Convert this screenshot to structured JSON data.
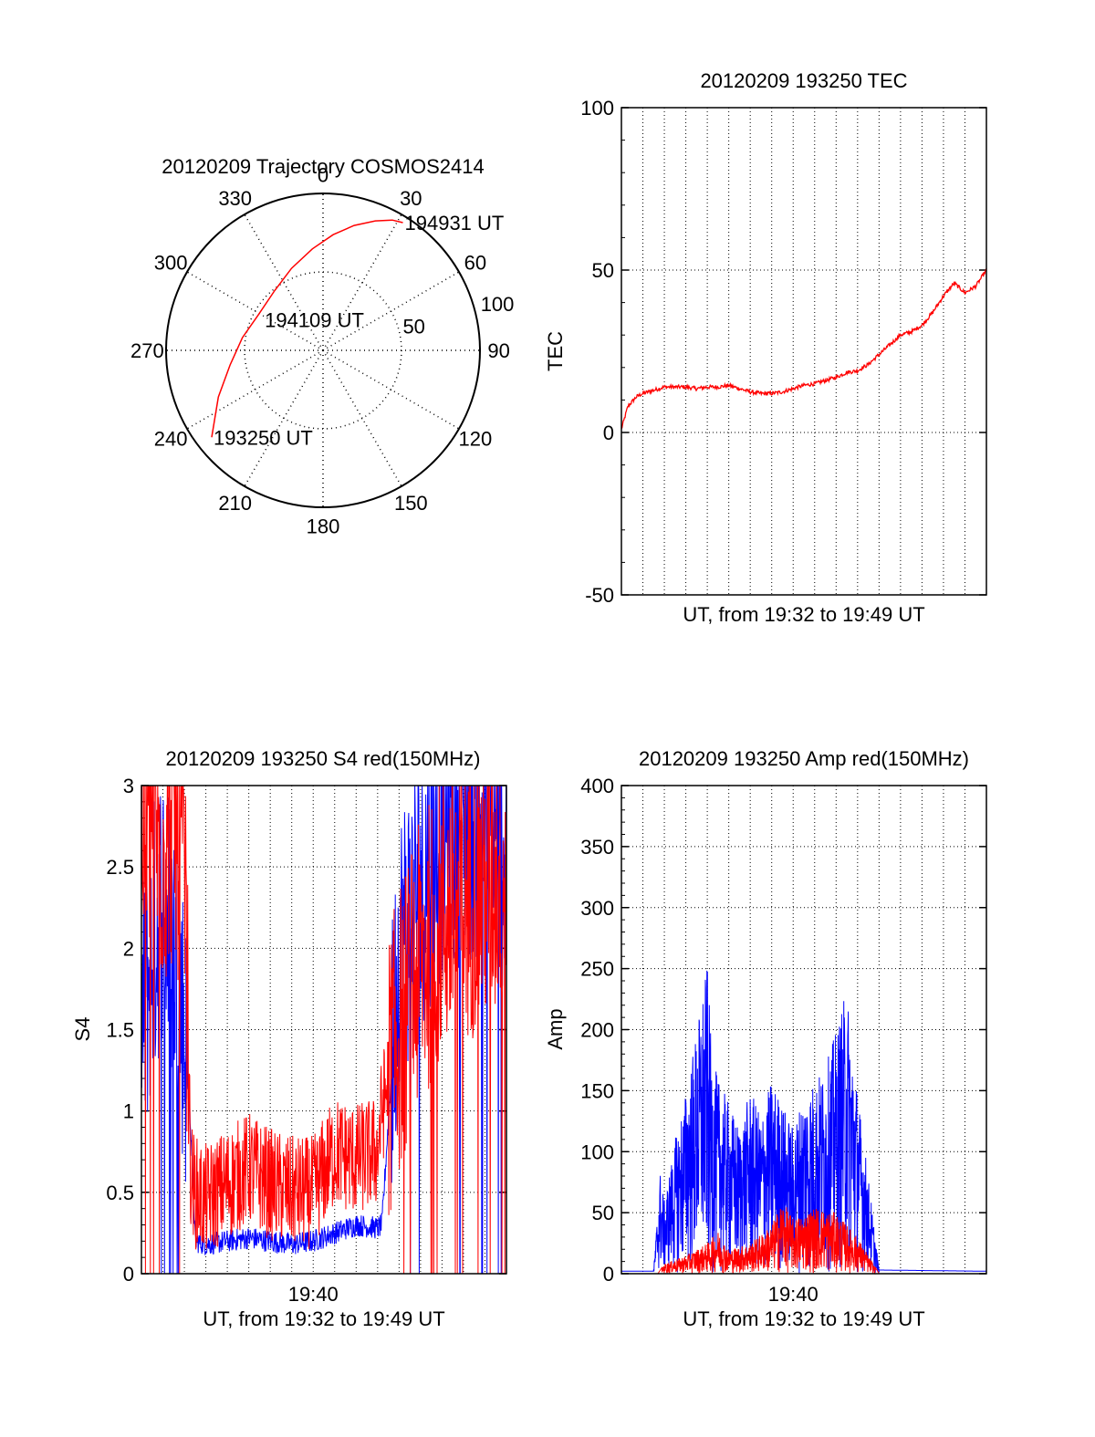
{
  "colors": {
    "red": "#ff0000",
    "blue": "#0000ff",
    "axis": "#000000"
  },
  "chart_data": [
    {
      "type": "polar",
      "title": "20120209 Trajectory COSMOS2414",
      "angle_labels": [
        "0",
        "30",
        "60",
        "90",
        "120",
        "150",
        "180",
        "210",
        "240",
        "270",
        "300",
        "330"
      ],
      "radial_labels": [
        "50",
        "100"
      ],
      "radial_label_values": [
        50,
        100
      ],
      "r_max": 100,
      "series": [
        {
          "color": "red",
          "points": [
            {
              "az": 232,
              "r": 90
            },
            {
              "az": 246,
              "r": 73
            },
            {
              "az": 261,
              "r": 60
            },
            {
              "az": 279,
              "r": 52
            },
            {
              "az": 299,
              "r": 47
            },
            {
              "az": 321,
              "r": 49
            },
            {
              "az": 339,
              "r": 56
            },
            {
              "az": 354,
              "r": 65
            },
            {
              "az": 5,
              "r": 74
            },
            {
              "az": 14,
              "r": 82
            },
            {
              "az": 22,
              "r": 89
            },
            {
              "az": 28,
              "r": 94
            },
            {
              "az": 32,
              "r": 96
            }
          ]
        }
      ],
      "annotations": [
        {
          "text": "194931 UT",
          "az": 32,
          "r": 96
        },
        {
          "text": "194109 UT",
          "az": 297,
          "r": 43
        },
        {
          "text": "193250 UT",
          "az": 232,
          "r": 90
        }
      ]
    },
    {
      "type": "line",
      "title": "20120209 193250 TEC",
      "ylabel": "TEC",
      "xlabel": "UT, from 19:32 to 19:49 UT",
      "ylim": [
        -50,
        100
      ],
      "yticks": [
        "-50",
        "0",
        "50",
        "100"
      ],
      "ytick_values": [
        -50,
        0,
        50,
        100
      ],
      "xlim": [
        0,
        17
      ],
      "grid": true,
      "series": [
        {
          "color": "red",
          "x": [
            0,
            0.3,
            0.7,
            1.0,
            1.5,
            2.0,
            2.5,
            3.0,
            3.5,
            4.0,
            4.5,
            5.0,
            5.5,
            6.0,
            6.5,
            7.0,
            7.5,
            8.0,
            8.5,
            9.0,
            9.5,
            10.0,
            10.5,
            11.0,
            11.5,
            12.0,
            12.5,
            13.0,
            13.5,
            14.0,
            14.5,
            15.0,
            15.5,
            16.0,
            16.5,
            17.0
          ],
          "y": [
            1,
            8,
            11,
            12,
            13,
            14,
            14,
            14,
            13.5,
            14,
            14,
            14.5,
            13.5,
            12.5,
            12,
            12,
            12.5,
            13.5,
            14.5,
            15,
            16,
            17,
            18.5,
            19,
            21,
            24,
            27,
            30,
            31,
            33,
            37,
            42,
            46,
            43,
            45,
            50
          ]
        }
      ]
    },
    {
      "type": "line",
      "title": "20120209 193250 S4 red(150MHz)",
      "ylabel": "S4",
      "xlabel": "UT, from 19:32 to 19:49 UT",
      "ylim": [
        0,
        3
      ],
      "yticks": [
        "0",
        "0.5",
        "1",
        "1.5",
        "2",
        "2.5",
        "3"
      ],
      "ytick_values": [
        0,
        0.5,
        1,
        1.5,
        2,
        2.5,
        3
      ],
      "xticks": [
        "19:40"
      ],
      "xtick_values": [
        8
      ],
      "xlim": [
        0,
        17
      ],
      "grid": true,
      "series": [
        {
          "color": "blue",
          "x": [
            0,
            0.5,
            1,
            1.5,
            2,
            2.3,
            2.5,
            3,
            4,
            5,
            6,
            7,
            8,
            9,
            10,
            11,
            11.2,
            12,
            13,
            14,
            15,
            16,
            17
          ],
          "y": [
            1.5,
            2.0,
            2.3,
            2.0,
            1.5,
            0.9,
            0.2,
            0.18,
            0.2,
            0.22,
            0.2,
            0.18,
            0.2,
            0.25,
            0.3,
            0.28,
            0.3,
            2.0,
            2.4,
            2.7,
            2.8,
            2.8,
            2.6
          ]
        },
        {
          "color": "red",
          "x": [
            0,
            0.5,
            1,
            1.5,
            2,
            2.3,
            2.5,
            3,
            4,
            5,
            6,
            7,
            8,
            9,
            10,
            11,
            11.2,
            12,
            13,
            14,
            15,
            16,
            17
          ],
          "y": [
            2.8,
            2.8,
            2.6,
            2.8,
            2.5,
            0.6,
            0.5,
            0.45,
            0.55,
            0.65,
            0.55,
            0.5,
            0.5,
            0.75,
            0.7,
            0.75,
            1.0,
            1.5,
            1.9,
            2.2,
            2.3,
            2.4,
            2.5
          ]
        }
      ]
    },
    {
      "type": "area",
      "title": "20120209 193250 Amp red(150MHz)",
      "ylabel": "Amp",
      "xlabel": "UT, from 19:32 to 19:49 UT",
      "ylim": [
        0,
        400
      ],
      "yticks": [
        "0",
        "50",
        "100",
        "150",
        "200",
        "250",
        "300",
        "350",
        "400"
      ],
      "ytick_values": [
        0,
        50,
        100,
        150,
        200,
        250,
        300,
        350,
        400
      ],
      "xticks": [
        "19:40"
      ],
      "xtick_values": [
        8
      ],
      "xlim": [
        0,
        17
      ],
      "grid": true,
      "series": [
        {
          "color": "blue",
          "x": [
            0,
            1.5,
            1.8,
            2.0,
            2.5,
            3.0,
            3.5,
            4.0,
            4.2,
            4.5,
            5.0,
            5.5,
            6.0,
            6.5,
            7.0,
            7.5,
            8.0,
            8.5,
            9.0,
            9.5,
            10.0,
            10.5,
            11.0,
            11.5,
            12.0,
            17.0
          ],
          "y": [
            2,
            2,
            85,
            60,
            110,
            150,
            200,
            255,
            180,
            160,
            140,
            120,
            150,
            130,
            160,
            140,
            120,
            150,
            160,
            170,
            200,
            235,
            150,
            80,
            3,
            2
          ]
        },
        {
          "color": "red",
          "x": [
            0,
            1.7,
            2.0,
            3.0,
            4.0,
            4.5,
            5.0,
            6.0,
            7.0,
            7.5,
            8.0,
            9.0,
            10.0,
            10.5,
            11.0,
            11.5,
            12.0,
            17.0
          ],
          "y": [
            0,
            0,
            8,
            15,
            25,
            35,
            20,
            25,
            40,
            60,
            45,
            55,
            50,
            40,
            30,
            15,
            0,
            0
          ]
        }
      ]
    }
  ]
}
